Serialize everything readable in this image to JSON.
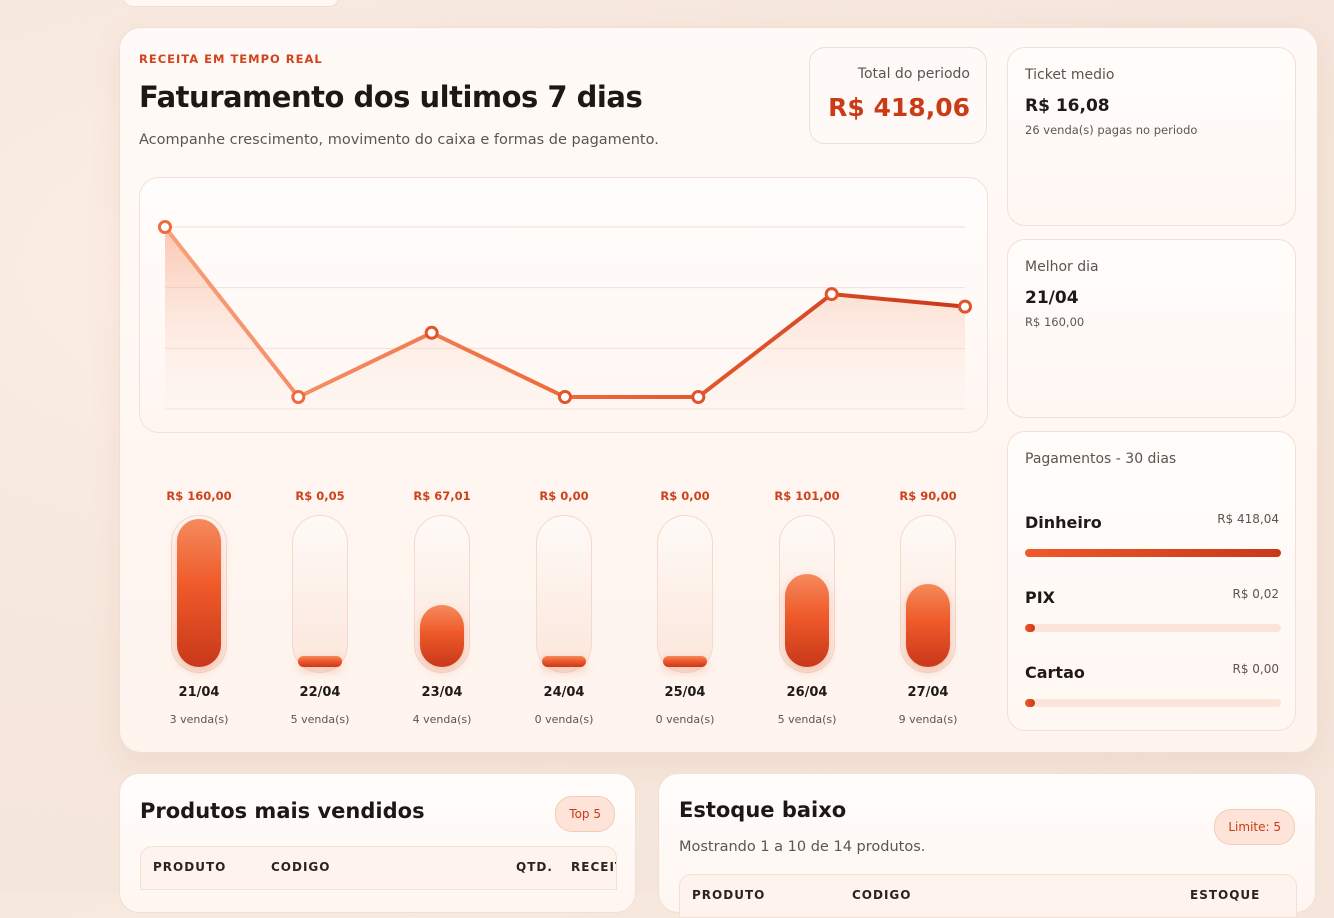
{
  "header": {
    "eyebrow": "RECEITA EM TEMPO REAL",
    "title": "Faturamento dos ultimos 7 dias",
    "subtitle": "Acompanhe crescimento, movimento do caixa e formas de pagamento."
  },
  "total": {
    "label": "Total do periodo",
    "value": "R$ 418,06"
  },
  "chart_data": {
    "type": "line",
    "x": [
      "21/04",
      "22/04",
      "23/04",
      "24/04",
      "25/04",
      "26/04",
      "27/04"
    ],
    "values": [
      160.0,
      0.05,
      67.01,
      0.0,
      0.0,
      101.0,
      90.0
    ],
    "ylim": [
      0,
      160
    ],
    "grid": true
  },
  "days": [
    {
      "value": "R$ 160,00",
      "date": "21/04",
      "sales": "3 venda(s)",
      "amount": 160.0
    },
    {
      "value": "R$ 0,05",
      "date": "22/04",
      "sales": "5 venda(s)",
      "amount": 0.05
    },
    {
      "value": "R$ 67,01",
      "date": "23/04",
      "sales": "4 venda(s)",
      "amount": 67.01
    },
    {
      "value": "R$ 0,00",
      "date": "24/04",
      "sales": "0 venda(s)",
      "amount": 0.0
    },
    {
      "value": "R$ 0,00",
      "date": "25/04",
      "sales": "0 venda(s)",
      "amount": 0.0
    },
    {
      "value": "R$ 101,00",
      "date": "26/04",
      "sales": "5 venda(s)",
      "amount": 101.0
    },
    {
      "value": "R$ 90,00",
      "date": "27/04",
      "sales": "9 venda(s)",
      "amount": 90.0
    }
  ],
  "ticket": {
    "label": "Ticket medio",
    "value": "R$ 16,08",
    "sub": "26 venda(s) pagas no periodo"
  },
  "best_day": {
    "label": "Melhor dia",
    "value": "21/04",
    "sub": "R$ 160,00"
  },
  "payments": {
    "label": "Pagamentos - 30 dias",
    "items": [
      {
        "name": "Dinheiro",
        "amount": "R$ 418,04",
        "share": 1.0
      },
      {
        "name": "PIX",
        "amount": "R$ 0,02",
        "share": 0.0
      },
      {
        "name": "Cartao",
        "amount": "R$ 0,00",
        "share": 0.0
      }
    ]
  },
  "top_products": {
    "title": "Produtos mais vendidos",
    "badge": "Top 5",
    "columns": [
      "PRODUTO",
      "CODIGO",
      "QTD.",
      "RECEITA"
    ]
  },
  "low_stock": {
    "title": "Estoque baixo",
    "badge": "Limite: 5",
    "desc": "Mostrando 1 a 10 de 14 produtos.",
    "columns": [
      "PRODUTO",
      "CODIGO",
      "ESTOQUE"
    ]
  },
  "colors": {
    "accent": "#e8532a",
    "accent_dark": "#c93c17",
    "light": "#f8a07a"
  }
}
